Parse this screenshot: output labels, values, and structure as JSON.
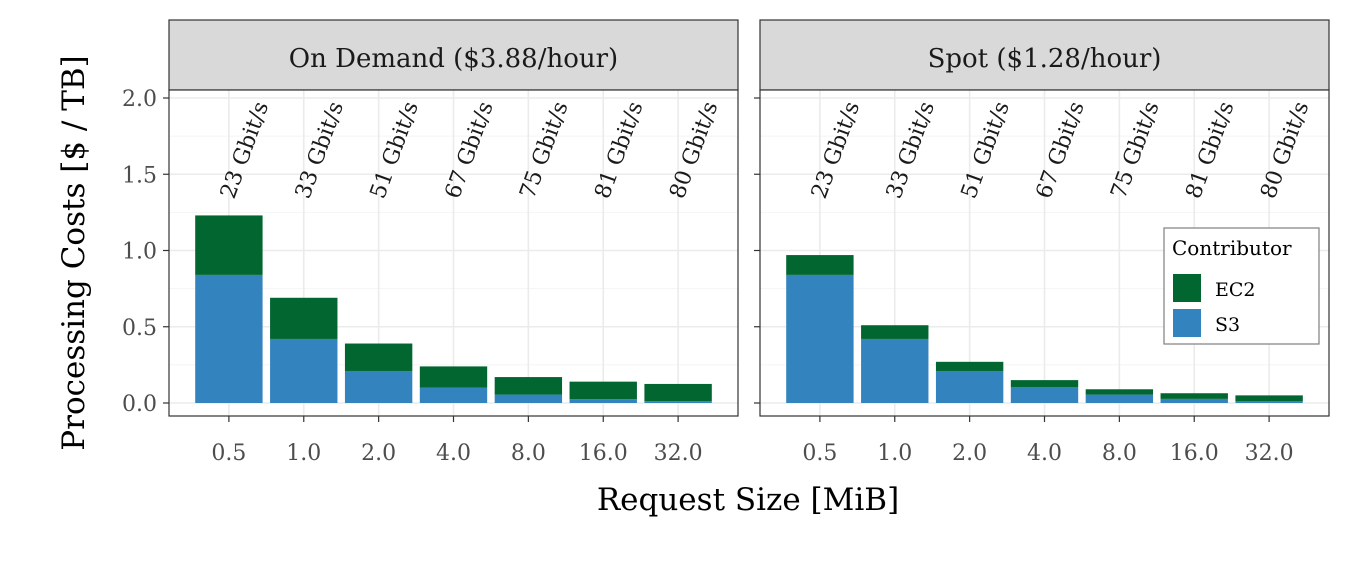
{
  "chart_data": {
    "type": "bar",
    "stacked": true,
    "ylabel": "Processing Costs [$ / TB]",
    "xlabel": "Request Size [MiB]",
    "ylim": [
      0,
      2.0
    ],
    "yticks": [
      "0.0",
      "0.5",
      "1.0",
      "1.5",
      "2.0"
    ],
    "categories": [
      "0.5",
      "1.0",
      "2.0",
      "4.0",
      "8.0",
      "16.0",
      "32.0"
    ],
    "grid": true,
    "legend": {
      "title": "Contributor",
      "placement": "right, inside second panel",
      "items": [
        {
          "name": "EC2",
          "color": "#016630"
        },
        {
          "name": "S3",
          "color": "#3383bf"
        }
      ]
    },
    "series_colors": {
      "EC2": "#016630",
      "S3": "#3383bf"
    },
    "facets": [
      {
        "title": "On Demand ($3.88/hour)",
        "annotations": [
          "23 Gbit/s",
          "33 Gbit/s",
          "51 Gbit/s",
          "67 Gbit/s",
          "75 Gbit/s",
          "81 Gbit/s",
          "80 Gbit/s"
        ],
        "series": [
          {
            "name": "S3",
            "values": [
              0.84,
              0.42,
              0.21,
              0.1,
              0.055,
              0.025,
              0.012
            ]
          },
          {
            "name": "EC2",
            "values": [
              0.39,
              0.27,
              0.18,
              0.14,
              0.115,
              0.115,
              0.113
            ]
          }
        ]
      },
      {
        "title": "Spot ($1.28/hour)",
        "annotations": [
          "23 Gbit/s",
          "33 Gbit/s",
          "51 Gbit/s",
          "67 Gbit/s",
          "75 Gbit/s",
          "81 Gbit/s",
          "80 Gbit/s"
        ],
        "series": [
          {
            "name": "S3",
            "values": [
              0.84,
              0.42,
              0.21,
              0.105,
              0.055,
              0.027,
              0.013
            ]
          },
          {
            "name": "EC2",
            "values": [
              0.13,
              0.09,
              0.06,
              0.045,
              0.035,
              0.037,
              0.037
            ]
          }
        ]
      }
    ]
  }
}
